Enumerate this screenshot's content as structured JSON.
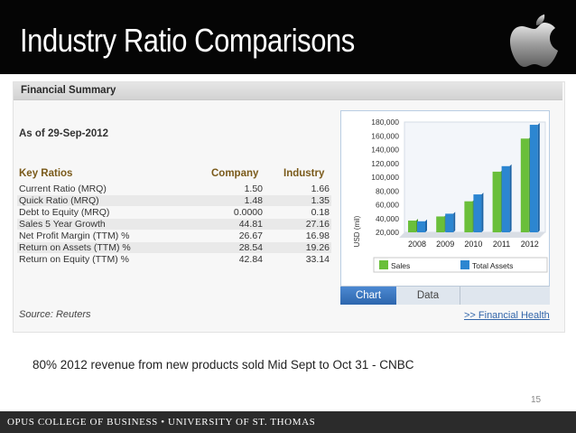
{
  "slide": {
    "title": "Industry Ratio Comparisons",
    "logo_icon": "apple-logo-icon",
    "note": "80% 2012 revenue from new products sold Mid Sept to Oct 31 - CNBC",
    "page_number": "15",
    "footer": "OPUS COLLEGE OF BUSINESS  •  UNIVERSITY OF ST. THOMAS"
  },
  "summary": {
    "title": "Financial Summary",
    "as_of": "As of 29-Sep-2012",
    "headers": {
      "name": "Key Ratios",
      "company": "Company",
      "industry": "Industry"
    },
    "rows": [
      {
        "name": "Current Ratio (MRQ)",
        "company": "1.50",
        "industry": "1.66"
      },
      {
        "name": "Quick Ratio (MRQ)",
        "company": "1.48",
        "industry": "1.35"
      },
      {
        "name": "Debt to Equity (MRQ)",
        "company": "0.0000",
        "industry": "0.18"
      },
      {
        "name": "Sales 5 Year Growth",
        "company": "44.81",
        "industry": "27.16"
      },
      {
        "name": "Net Profit Margin (TTM) %",
        "company": "26.67",
        "industry": "16.98"
      },
      {
        "name": "Return on Assets (TTM) %",
        "company": "28.54",
        "industry": "19.26"
      },
      {
        "name": "Return on Equity (TTM) %",
        "company": "42.84",
        "industry": "33.14"
      }
    ],
    "source": "Source: Reuters",
    "tabs": {
      "chart": "Chart",
      "data": "Data"
    },
    "link": ">> Financial Health"
  },
  "chart_data": {
    "type": "bar",
    "categories": [
      "2008",
      "2009",
      "2010",
      "2011",
      "2012"
    ],
    "series": [
      {
        "name": "Sales",
        "values": [
          37000,
          43000,
          65000,
          108000,
          156000
        ],
        "color": "#6abf3a"
      },
      {
        "name": "Total Assets",
        "values": [
          36000,
          47000,
          75000,
          116000,
          176000
        ],
        "color": "#2c86d1"
      }
    ],
    "ylabel": "USD (mil)",
    "ylim": [
      20000,
      180000
    ],
    "yticks": [
      "180,000",
      "160,000",
      "140,000",
      "120,000",
      "100,000",
      "80,000",
      "60,000",
      "40,000",
      "20,000"
    ],
    "legend": "bottom",
    "grid": false
  }
}
